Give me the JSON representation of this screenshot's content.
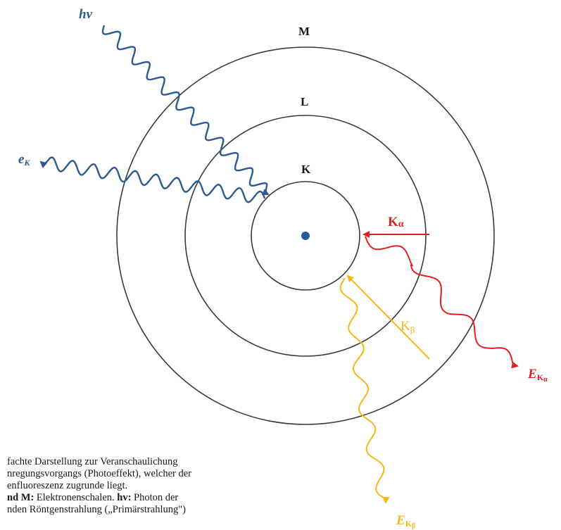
{
  "colors": {
    "blue": "#2f5a8f",
    "red": "#e02020",
    "yellow": "#f5b719",
    "shell": "#3a3a3a",
    "nucleus": "#2b5a99"
  },
  "shells": {
    "k": "K",
    "l": "L",
    "m": "M"
  },
  "labels": {
    "incident_photon": "hv",
    "ejected_electron_main": "e",
    "ejected_electron_sub": "K",
    "k_alpha_main": "K",
    "k_alpha_sub": "α",
    "k_beta_main": "K",
    "k_beta_sub": "β",
    "e_k_alpha_main": "E",
    "e_k_alpha_sub1": "K",
    "e_k_alpha_sub2": "α",
    "e_k_beta_main": "E",
    "e_k_beta_sub1": "K",
    "e_k_beta_sub2": "β"
  },
  "caption": {
    "line1": "fachte Darstellung zur Veranschaulichung",
    "line2": "nregungsvorgangs (Photoeffekt), welcher der",
    "line3": "enfluoreszenz zugrunde liegt.",
    "line4_bold": "nd M:",
    "line4_text": " Elektronenschalen. ",
    "line4_bold2": "hv:",
    "line4_text2": " Photon der",
    "line5": "nden Röntgenstrahlung („Primärstrahlung\")"
  }
}
